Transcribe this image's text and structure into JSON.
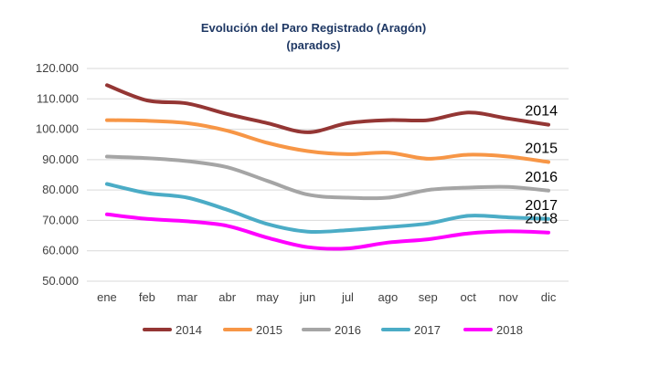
{
  "chart_data": {
    "type": "line",
    "title": "Evolución del Paro Registrado (Aragón)",
    "subtitle": "(parados)",
    "xlabel": "",
    "ylabel": "",
    "ylim": [
      50000,
      120000
    ],
    "y_ticks": [
      "50.000",
      "60.000",
      "70.000",
      "80.000",
      "90.000",
      "100.000",
      "110.000",
      "120.000"
    ],
    "y_tick_values": [
      50000,
      60000,
      70000,
      80000,
      90000,
      100000,
      110000,
      120000
    ],
    "grid": true,
    "legend_position": "bottom",
    "categories": [
      "ene",
      "feb",
      "mar",
      "abr",
      "may",
      "jun",
      "jul",
      "ago",
      "sep",
      "oct",
      "nov",
      "dic"
    ],
    "series": [
      {
        "name": "2014",
        "color": "#943634",
        "end_label": "2014",
        "values": [
          114500,
          109500,
          108500,
          105000,
          102000,
          99000,
          102000,
          103000,
          103000,
          105500,
          103500,
          101500
        ]
      },
      {
        "name": "2015",
        "color": "#f79646",
        "end_label": "2015",
        "values": [
          103000,
          102800,
          102000,
          99500,
          95500,
          92800,
          91800,
          92300,
          90300,
          91600,
          91000,
          89200
        ]
      },
      {
        "name": "2016",
        "color": "#a5a5a5",
        "end_label": "2016",
        "values": [
          91000,
          90500,
          89500,
          87500,
          83000,
          78500,
          77500,
          77500,
          80000,
          80800,
          81000,
          79800
        ]
      },
      {
        "name": "2017",
        "color": "#4bacc6",
        "end_label": "2017",
        "values": [
          82000,
          79000,
          77500,
          73500,
          68800,
          66300,
          66800,
          67800,
          69000,
          71500,
          71000,
          70500
        ]
      },
      {
        "name": "2018",
        "color": "#ff00ff",
        "end_label": "2018",
        "values": [
          72000,
          70500,
          69700,
          68200,
          64300,
          61200,
          60800,
          62700,
          63800,
          65700,
          66400,
          66000
        ]
      }
    ]
  }
}
